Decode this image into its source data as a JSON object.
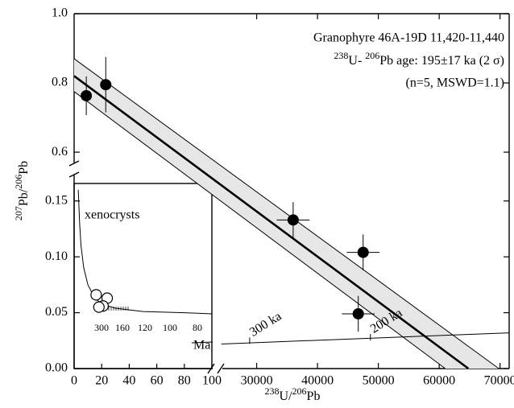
{
  "chart_data": {
    "type": "scatter",
    "annotation": {
      "line1": "Granophyre 46A-19D 11,420-11,440",
      "line2": [
        {
          "sup": "238"
        },
        {
          "text": "U- "
        },
        {
          "sup": "206"
        },
        {
          "text": "Pb age: 195±17 ka (2 σ)"
        }
      ],
      "line3": "(n=5, MSWD=1.1)"
    },
    "x_label": [
      {
        "sup": "238"
      },
      {
        "text": "U/"
      },
      {
        "sup": "206"
      },
      {
        "text": "Pb"
      }
    ],
    "y_label": [
      {
        "sup": "207"
      },
      {
        "text": "Pb/"
      },
      {
        "sup": "206"
      },
      {
        "text": "Pb"
      }
    ],
    "xlim": [
      0,
      71500
    ],
    "xticks": [
      30000,
      40000,
      50000,
      60000,
      70000
    ],
    "ylim_upper": [
      0.563,
      1
    ],
    "yticks_upper": [
      0.6,
      0.8,
      {
        "value": 1,
        "label": "1.0"
      }
    ],
    "ylim": [
      0,
      0.175
    ],
    "yticks": [
      {
        "value": 0,
        "label": "0.00"
      },
      0.05,
      {
        "value": 0.1,
        "label": "0.10"
      },
      0.15
    ],
    "points": {
      "x": [
        2000,
        5200,
        36000,
        47500,
        46700
      ],
      "y": [
        0.763,
        0.795,
        0.133,
        0.104,
        0.049
      ],
      "x_err": [
        0,
        0,
        2700,
        2700,
        2700
      ],
      "y_err": [
        0.056,
        0.08,
        0.016,
        0.016,
        0.016
      ]
    },
    "regression": {
      "x": [
        0,
        64800
      ],
      "y": [
        0.82,
        0
      ]
    },
    "envelope_upper": {
      "x": [
        0,
        69800
      ],
      "y": [
        0.87,
        0
      ]
    },
    "envelope_lower": {
      "x": [
        0,
        61000
      ],
      "y": [
        0.775,
        0
      ]
    },
    "concordia": {
      "x": [
        24200,
        71500
      ],
      "y": [
        0.022,
        0.032
      ],
      "age_ticks": {
        "x": [
          28850,
          48700
        ],
        "y": [
          0.025,
          0.028
        ],
        "labels": [
          "300 ka",
          "200 ka"
        ]
      }
    },
    "inset": {
      "title": "xenocrysts",
      "xlim": [
        0,
        100
      ],
      "xticks": [
        0,
        20,
        40,
        60,
        80,
        100
      ],
      "points": {
        "x": [
          16,
          24,
          21,
          18
        ],
        "y": [
          0.066,
          0.063,
          0.056,
          0.055
        ]
      },
      "concordia": {
        "x": [
          3,
          4,
          5,
          7,
          10,
          15,
          20,
          30,
          50,
          80,
          100
        ],
        "y": [
          0.16,
          0.13,
          0.11,
          0.09,
          0.075,
          0.063,
          0.058,
          0.054,
          0.051,
          0.05,
          0.049
        ]
      },
      "age_labels": [
        "300",
        "160",
        "120",
        "100",
        "80"
      ],
      "age_unit": "Ma"
    }
  }
}
